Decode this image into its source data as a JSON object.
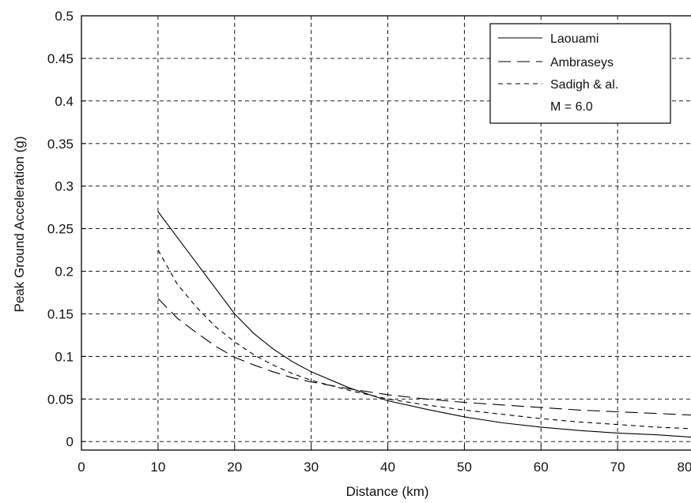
{
  "chart_data": {
    "type": "line",
    "title": "",
    "xlabel": "Distance (km)",
    "ylabel": "Peak Ground Acceleration (g)",
    "xlim": [
      0,
      80
    ],
    "ylim": [
      -0.01,
      0.5
    ],
    "xticks": [
      "0",
      "10",
      "20",
      "30",
      "40",
      "50",
      "60",
      "70",
      "80"
    ],
    "yticks": [
      "0",
      "0.05",
      "0.1",
      "0.15",
      "0.2",
      "0.25",
      "0.3",
      "0.35",
      "0.4",
      "0.45",
      "0.5"
    ],
    "grid": true,
    "grid_style": "dashed",
    "legend_position": "top-right",
    "legend_note": "M = 6.0",
    "x": [
      10,
      12.5,
      15,
      17.5,
      20,
      22.5,
      25,
      27.5,
      30,
      35,
      40,
      45,
      50,
      55,
      60,
      65,
      70,
      75,
      80
    ],
    "series": [
      {
        "name": "Laouami",
        "line_style": "solid",
        "color": "#000000",
        "values": [
          0.27,
          0.24,
          0.21,
          0.18,
          0.15,
          0.127,
          0.109,
          0.094,
          0.082,
          0.063,
          0.048,
          0.038,
          0.029,
          0.022,
          0.017,
          0.013,
          0.01,
          0.008,
          0.005
        ]
      },
      {
        "name": "Ambraseys",
        "line_style": "long-dash",
        "color": "#000000",
        "values": [
          0.168,
          0.145,
          0.128,
          0.112,
          0.099,
          0.09,
          0.082,
          0.075,
          0.07,
          0.062,
          0.055,
          0.05,
          0.046,
          0.043,
          0.04,
          0.037,
          0.035,
          0.033,
          0.031
        ]
      },
      {
        "name": "Sadigh & al.",
        "line_style": "short-dash",
        "color": "#000000",
        "values": [
          0.225,
          0.185,
          0.158,
          0.135,
          0.117,
          0.102,
          0.09,
          0.08,
          0.072,
          0.06,
          0.05,
          0.043,
          0.037,
          0.032,
          0.027,
          0.023,
          0.02,
          0.017,
          0.015
        ]
      }
    ]
  }
}
